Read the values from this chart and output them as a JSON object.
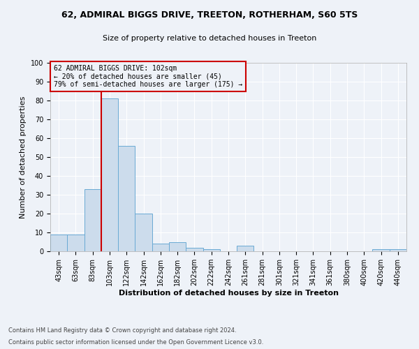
{
  "title": "62, ADMIRAL BIGGS DRIVE, TREETON, ROTHERHAM, S60 5TS",
  "subtitle": "Size of property relative to detached houses in Treeton",
  "xlabel": "Distribution of detached houses by size in Treeton",
  "ylabel": "Number of detached properties",
  "footnote1": "Contains HM Land Registry data © Crown copyright and database right 2024.",
  "footnote2": "Contains public sector information licensed under the Open Government Licence v3.0.",
  "categories": [
    "43sqm",
    "63sqm",
    "83sqm",
    "103sqm",
    "122sqm",
    "142sqm",
    "162sqm",
    "182sqm",
    "202sqm",
    "222sqm",
    "242sqm",
    "261sqm",
    "281sqm",
    "301sqm",
    "321sqm",
    "341sqm",
    "361sqm",
    "380sqm",
    "400sqm",
    "420sqm",
    "440sqm"
  ],
  "values": [
    9,
    9,
    33,
    81,
    56,
    20,
    4,
    5,
    2,
    1,
    0,
    3,
    0,
    0,
    0,
    0,
    0,
    0,
    0,
    1,
    1
  ],
  "bar_color": "#ccdcec",
  "bar_edge_color": "#6aaad4",
  "highlight_line_color": "#cc0000",
  "highlight_bar_index": 3,
  "annotation_line1": "62 ADMIRAL BIGGS DRIVE: 102sqm",
  "annotation_line2": "← 20% of detached houses are smaller (45)",
  "annotation_line3": "79% of semi-detached houses are larger (175) →",
  "annotation_box_edge_color": "#cc0000",
  "ylim": [
    0,
    100
  ],
  "background_color": "#eef2f8",
  "grid_color": "#ffffff",
  "title_fontsize": 9,
  "subtitle_fontsize": 8,
  "ylabel_fontsize": 8,
  "xlabel_fontsize": 8,
  "tick_fontsize": 7,
  "annotation_fontsize": 7,
  "footnote_fontsize": 6
}
